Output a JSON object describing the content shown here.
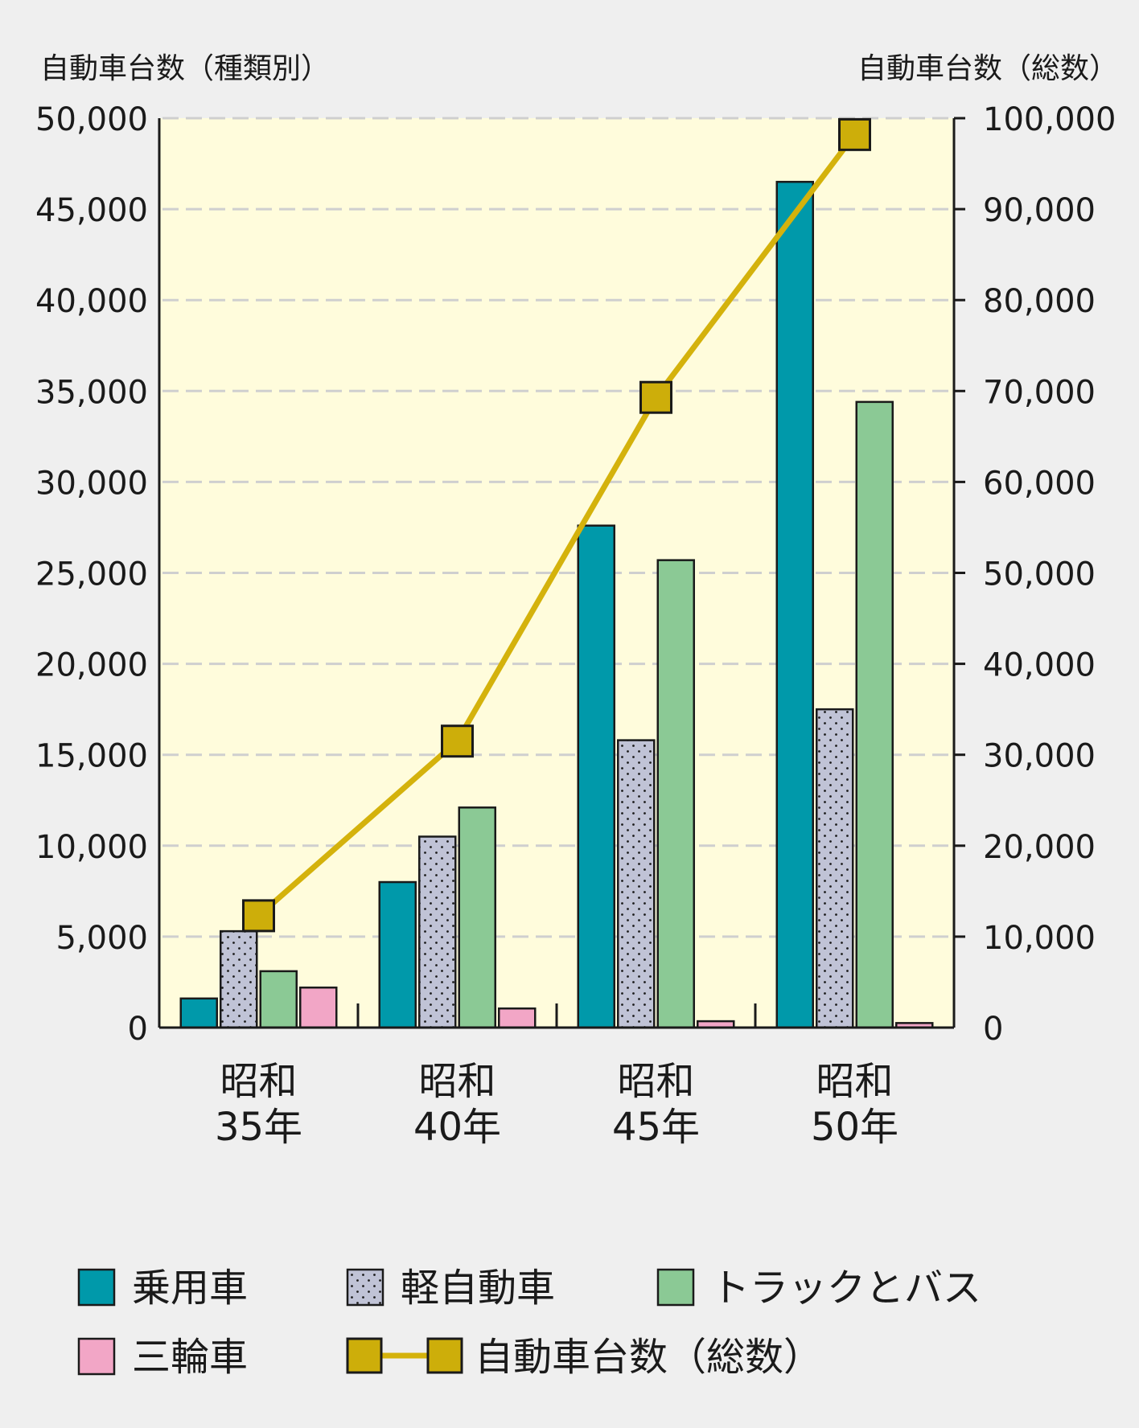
{
  "chart_data": {
    "type": "bar",
    "left_axis_title": "自動車台数（種類別）",
    "right_axis_title": "自動車台数（総数）",
    "categories": [
      {
        "line1": "昭和",
        "line2": "35年"
      },
      {
        "line1": "昭和",
        "line2": "40年"
      },
      {
        "line1": "昭和",
        "line2": "45年"
      },
      {
        "line1": "昭和",
        "line2": "50年"
      }
    ],
    "left_ylim": [
      0,
      50000
    ],
    "left_ticks": [
      "0",
      "5,000",
      "10,000",
      "15,000",
      "20,000",
      "25,000",
      "30,000",
      "35,000",
      "40,000",
      "45,000",
      "50,000"
    ],
    "right_ylim": [
      0,
      100000
    ],
    "right_ticks": [
      "0",
      "10,000",
      "20,000",
      "30,000",
      "40,000",
      "50,000",
      "60,000",
      "70,000",
      "80,000",
      "90,000",
      "100,000"
    ],
    "series": [
      {
        "name": "乗用車",
        "color": "#0099aa",
        "pattern": "solid",
        "values": [
          1600,
          8000,
          27600,
          46500
        ]
      },
      {
        "name": "軽自動車",
        "color": "#c0c3d6",
        "pattern": "dots",
        "values": [
          5300,
          10500,
          15800,
          17500
        ]
      },
      {
        "name": "トラックとバス",
        "color": "#8bc995",
        "pattern": "solid",
        "values": [
          3100,
          12100,
          25700,
          34400
        ]
      },
      {
        "name": "三輪車",
        "color": "#f2a6c6",
        "pattern": "solid",
        "values": [
          2200,
          1050,
          350,
          250
        ]
      }
    ],
    "line_series": {
      "name": "自動車台数（総数）",
      "axis": "right",
      "color": "#d4b20c",
      "marker_color": "#cdae0a",
      "values": [
        12300,
        31500,
        69300,
        98200
      ]
    },
    "plot_background": "#fffcdc",
    "grid_color": "#cfcfcf"
  }
}
